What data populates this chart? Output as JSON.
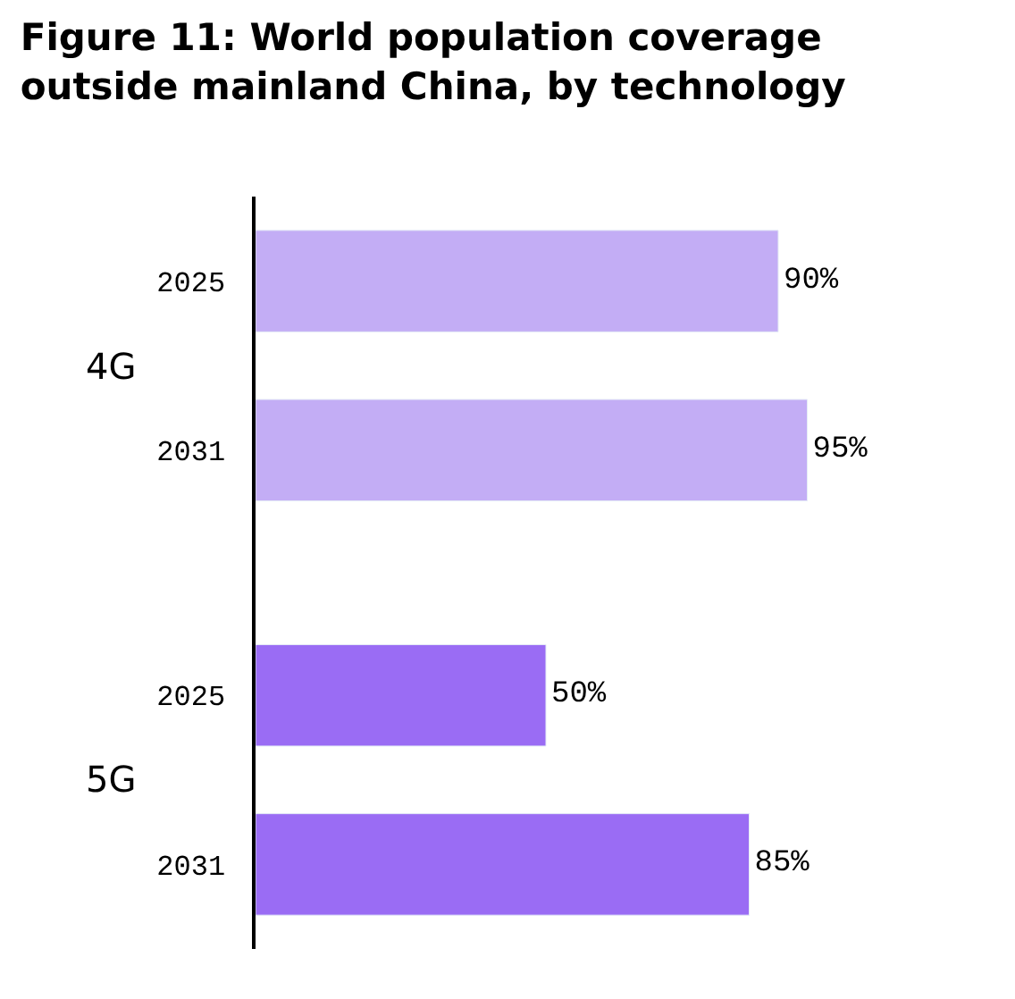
{
  "chart_data": {
    "type": "bar",
    "orientation": "horizontal",
    "title": "Figure 11: World population coverage\noutside mainland China, by technology",
    "categories": [
      "2025",
      "2031",
      "2025",
      "2031"
    ],
    "values": [
      90,
      95,
      50,
      85
    ],
    "colors": [
      "#c3adf5",
      "#c3adf5",
      "#9a6cf4",
      "#9a6cf4"
    ],
    "value_labels": [
      "90%",
      "95%",
      "50%",
      "85%"
    ],
    "annotations": [
      "4G",
      "5G"
    ]
  }
}
